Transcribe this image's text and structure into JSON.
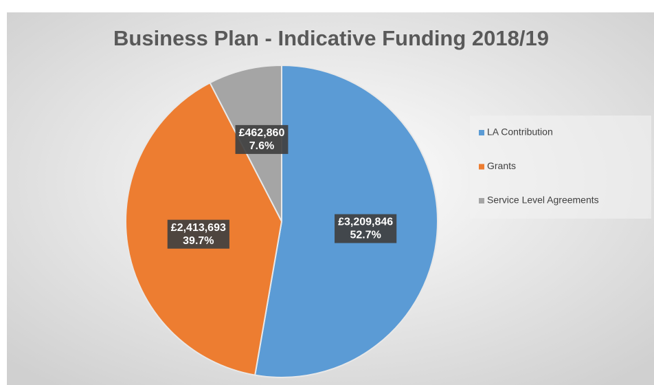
{
  "chart_data": {
    "type": "pie",
    "title": "Business Plan - Indicative Funding 2018/19",
    "categories": [
      "LA Contribution",
      "Grants",
      "Service Level Agreements"
    ],
    "values": [
      3209846,
      2413693,
      462860
    ],
    "value_labels": [
      "£3,209,846",
      "£2,413,693",
      "£462,860"
    ],
    "percent_labels": [
      "52.7%",
      "39.7%",
      "7.6%"
    ],
    "colors": [
      "#5b9bd5",
      "#ed7d31",
      "#a5a5a5"
    ],
    "legend": "right"
  }
}
